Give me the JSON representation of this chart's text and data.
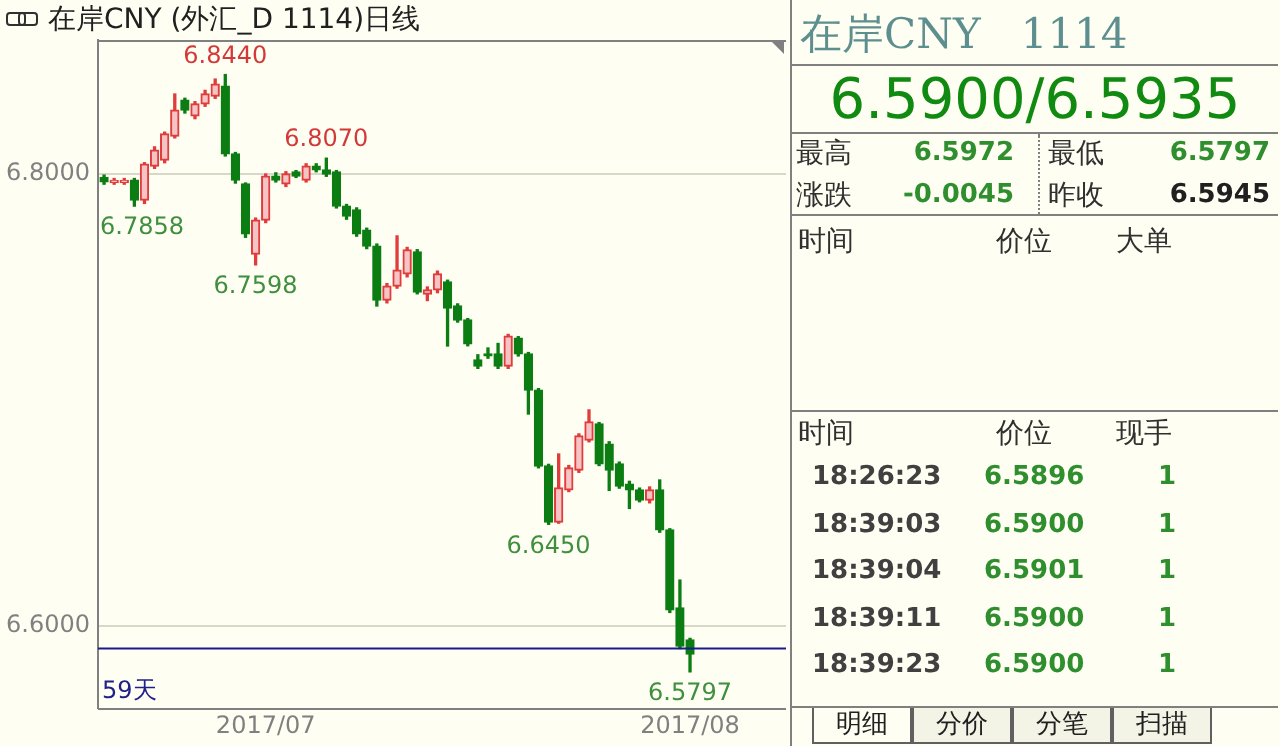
{
  "chart_data": [
    {
      "type": "candlestick",
      "title": "在岸CNY (外汇_D 1114)日线",
      "categories": [
        null,
        null,
        null,
        null,
        null,
        null,
        null,
        null,
        null,
        null,
        null,
        null,
        null,
        null,
        null,
        null,
        "2017/07",
        null,
        null,
        null,
        null,
        null,
        null,
        null,
        null,
        null,
        null,
        null,
        null,
        null,
        null,
        null,
        null,
        null,
        null,
        null,
        null,
        null,
        null,
        null,
        null,
        null,
        null,
        null,
        null,
        null,
        null,
        null,
        null,
        null,
        null,
        null,
        null,
        null,
        null,
        null,
        null,
        null,
        "2017/08"
      ],
      "ohlc": [
        [
          6.7985,
          6.7995,
          6.7955,
          6.7965
        ],
        [
          6.7962,
          6.798,
          6.7955,
          6.7972
        ],
        [
          6.7962,
          6.798,
          6.7955,
          6.7972
        ],
        [
          6.7973,
          6.798,
          6.7858,
          6.7885
        ],
        [
          6.7885,
          6.805,
          6.787,
          6.8044
        ],
        [
          6.8035,
          6.812,
          6.8025,
          6.8106
        ],
        [
          6.8062,
          6.8185,
          6.805,
          6.8177
        ],
        [
          6.8168,
          6.8354,
          6.816,
          6.8283
        ],
        [
          6.8327,
          6.8335,
          6.827,
          6.8283
        ],
        [
          6.8257,
          6.832,
          6.8245,
          6.831
        ],
        [
          6.831,
          6.837,
          6.83,
          6.8354
        ],
        [
          6.8345,
          6.842,
          6.8335,
          6.8398
        ],
        [
          6.8389,
          6.844,
          6.808,
          6.8089
        ],
        [
          6.8089,
          6.8095,
          6.796,
          6.7973
        ],
        [
          6.7956,
          6.796,
          6.772,
          6.7735
        ],
        [
          6.7646,
          6.7805,
          6.7598,
          6.7796
        ],
        [
          6.7796,
          6.8,
          6.7785,
          6.7991
        ],
        [
          6.7991,
          6.8005,
          6.7965,
          6.7973
        ],
        [
          6.7956,
          6.801,
          6.7945,
          6.8
        ],
        [
          6.8009,
          6.8015,
          6.7985,
          6.7991
        ],
        [
          6.7973,
          6.8045,
          6.7965,
          6.8035
        ],
        [
          6.8035,
          6.8045,
          6.801,
          6.8018
        ],
        [
          6.8018,
          6.807,
          6.799,
          6.8
        ],
        [
          6.8009,
          6.8015,
          6.785,
          6.7858
        ],
        [
          6.7858,
          6.7865,
          6.78,
          6.7814
        ],
        [
          6.7841,
          6.785,
          6.7725,
          6.7735
        ],
        [
          6.7752,
          6.776,
          6.767,
          6.7681
        ],
        [
          6.7681,
          6.769,
          6.7416,
          6.7442
        ],
        [
          6.7442,
          6.7515,
          6.743,
          6.7504
        ],
        [
          6.7504,
          6.7726,
          6.7495,
          6.7575
        ],
        [
          6.7558,
          6.7675,
          6.7545,
          6.7664
        ],
        [
          6.7655,
          6.7665,
          6.747,
          6.7478
        ],
        [
          6.7469,
          6.75,
          6.744,
          6.7487
        ],
        [
          6.7487,
          6.757,
          6.7475,
          6.7558
        ],
        [
          6.7522,
          6.753,
          6.7239,
          6.7407
        ],
        [
          6.7416,
          6.7425,
          6.7345,
          6.7354
        ],
        [
          6.7354,
          6.736,
          6.724,
          6.7248
        ],
        [
          6.7177,
          6.72,
          6.714,
          6.715
        ],
        [
          6.7204,
          6.723,
          6.7185,
          6.7195
        ],
        [
          6.7204,
          6.725,
          6.714,
          6.715
        ],
        [
          6.715,
          6.729,
          6.714,
          6.7283
        ],
        [
          6.7274,
          6.728,
          6.7195,
          6.7204
        ],
        [
          6.7204,
          6.721,
          6.6938,
          6.7044
        ],
        [
          6.7044,
          6.705,
          6.67,
          6.6708
        ],
        [
          6.6708,
          6.6715,
          6.645,
          6.646
        ],
        [
          6.646,
          6.6761,
          6.6455,
          6.6611
        ],
        [
          6.6602,
          6.671,
          6.6595,
          6.6699
        ],
        [
          6.669,
          6.685,
          6.668,
          6.6841
        ],
        [
          6.6823,
          6.6956,
          6.6815,
          6.6903
        ],
        [
          6.6894,
          6.69,
          6.671,
          6.6717
        ],
        [
          6.6805,
          6.6815,
          6.66,
          6.669
        ],
        [
          6.6717,
          6.6725,
          6.661,
          6.6619
        ],
        [
          6.6628,
          6.664,
          6.652,
          6.6602
        ],
        [
          6.6602,
          6.661,
          6.655,
          6.6557
        ],
        [
          6.6557,
          6.6615,
          6.6545,
          6.6602
        ],
        [
          6.6602,
          6.6646,
          6.6415,
          6.6425
        ],
        [
          6.6425,
          6.643,
          6.606,
          6.6071
        ],
        [
          6.608,
          6.6203,
          6.59,
          6.5911
        ],
        [
          6.5938,
          6.5945,
          6.5797,
          6.5876
        ]
      ],
      "ylim": [
        6.5637,
        6.8593
      ],
      "yticks": [
        {
          "value": 6.8,
          "label": "6.8000"
        },
        {
          "value": 6.6,
          "label": "6.6000"
        }
      ],
      "grid": "y",
      "ref_lines": [
        {
          "axis": "y",
          "value": 6.59,
          "color": "#1a1a8c"
        }
      ],
      "annotations": [
        {
          "text": "6.8440",
          "y": 6.844
        },
        {
          "text": "6.7858",
          "y": 6.7858
        },
        {
          "text": "6.8070",
          "y": 6.807
        },
        {
          "text": "6.7598",
          "y": 6.7598
        },
        {
          "text": "6.6450",
          "y": 6.645
        },
        {
          "text": "6.5797",
          "y": 6.5797
        },
        "59天"
      ]
    },
    {
      "type": "other",
      "title": "在岸CNY   1114",
      "subtitle": "6.5900/6.5935",
      "annotations": [
        "最高",
        "6.5972",
        "最低",
        "6.5797",
        "涨跌",
        "-0.0045",
        "昨收",
        "6.5945",
        "时间",
        "价位",
        "大单",
        "时间",
        "价位",
        "现手",
        "18:26:23",
        "6.5896",
        "1",
        "18:39:03",
        "6.5900",
        "1",
        "18:39:04",
        "6.5901",
        "1",
        "18:39:11",
        "6.5900",
        "1",
        "18:39:23",
        "6.5900",
        "1",
        "明细",
        "分价",
        "分笔",
        "扫描"
      ]
    }
  ]
}
